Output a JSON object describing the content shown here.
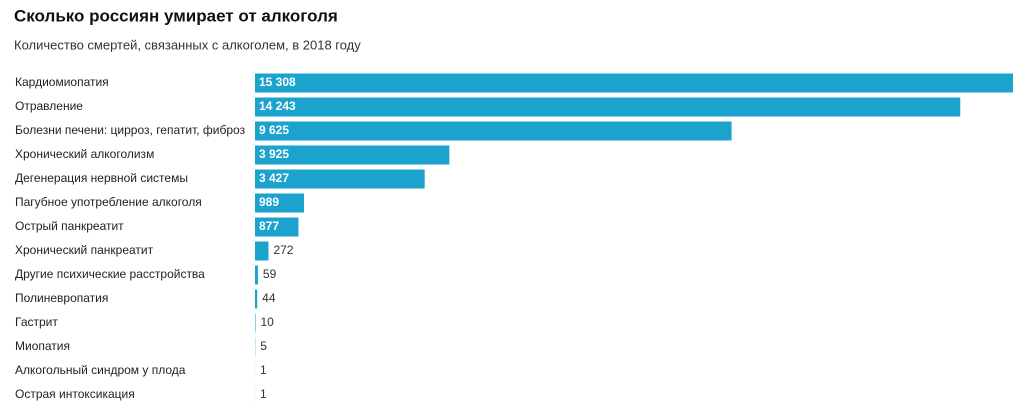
{
  "chart_data": {
    "type": "bar",
    "orientation": "horizontal",
    "title": "Сколько россиян умирает от алкоголя",
    "subtitle": "Количество смертей, связанных с алкоголем, в 2018 году",
    "color": "#1ba3cd",
    "categories": [
      "Кардиомиопатия",
      "Отравление",
      "Болезни печени: цирроз, гепатит, фиброз",
      "Хронический алкоголизм",
      "Дегенерация нервной системы",
      "Пагубное употребление алкоголя",
      "Острый панкреатит",
      "Хронический панкреатит",
      "Другие психические расстройства",
      "Полиневропатия",
      "Гастрит",
      "Миопатия",
      "Алкогольный синдром у плода",
      "Острая интоксикация"
    ],
    "values": [
      15308,
      14243,
      9625,
      3925,
      3427,
      989,
      877,
      272,
      59,
      44,
      10,
      5,
      1,
      1
    ],
    "value_labels": [
      "15 308",
      "14 243",
      "9 625",
      "3 925",
      "3 427",
      "989",
      "877",
      "272",
      "59",
      "44",
      "10",
      "5",
      "1",
      "1"
    ]
  }
}
